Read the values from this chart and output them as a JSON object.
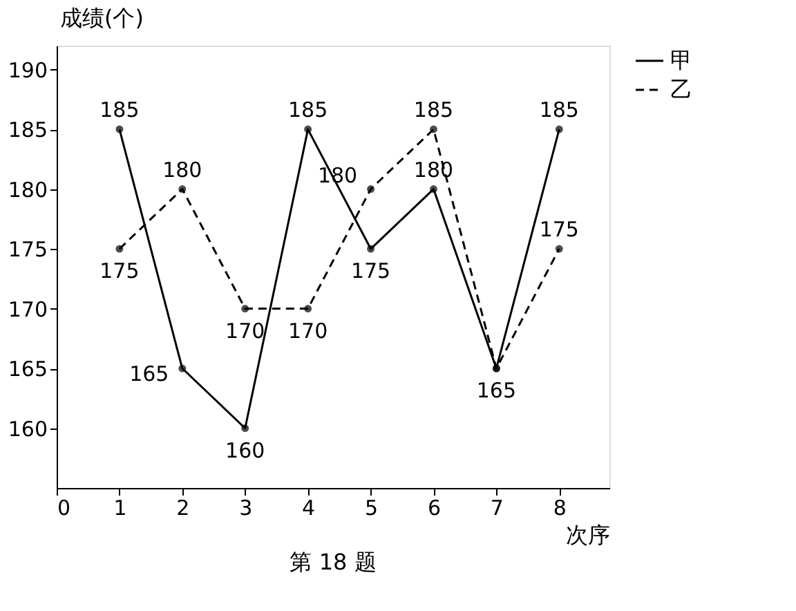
{
  "chart_data": {
    "type": "line",
    "xlabel": "次序",
    "ylabel": "成绩(个)",
    "annotations": [
      "第 18 题"
    ],
    "x": [
      1,
      2,
      3,
      4,
      5,
      6,
      7,
      8
    ],
    "series": [
      {
        "name": "甲",
        "color": "#000000",
        "line_style": "solid",
        "values": [
          185,
          165,
          160,
          185,
          175,
          180,
          165,
          185
        ],
        "value_labels": [
          "185",
          "165",
          "160",
          "185",
          "175",
          "180",
          "165",
          "185"
        ]
      },
      {
        "name": "乙",
        "color": "#000000",
        "line_style": "dashed",
        "values": [
          175,
          180,
          170,
          170,
          180,
          185,
          165,
          175
        ],
        "value_labels": [
          "175",
          "180",
          "170",
          "170",
          "180",
          "185",
          null,
          "175"
        ]
      }
    ],
    "xlim": [
      0,
      8.8
    ],
    "xticks": [
      0,
      1,
      2,
      3,
      4,
      5,
      6,
      7,
      8
    ],
    "ylim": [
      155,
      192
    ],
    "yticks": [
      160,
      165,
      170,
      175,
      180,
      185,
      190
    ],
    "grid": false,
    "legend": "right",
    "marker": "circle"
  }
}
